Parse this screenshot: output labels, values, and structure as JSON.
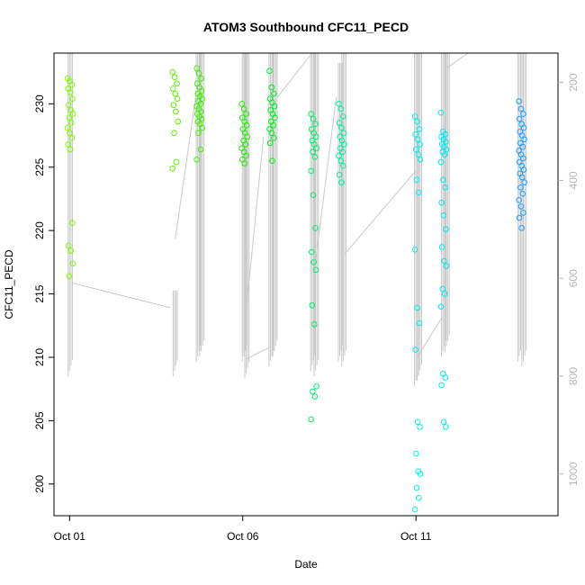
{
  "chart_data": {
    "type": "scatter",
    "title": "ATOM3 Southbound CFC11_PECD",
    "xlabel": "Date",
    "ylabel": "CFC11_PECD",
    "x_ticks": [
      "Oct 01",
      "Oct 06",
      "Oct 11"
    ],
    "x_tick_days": [
      1,
      6,
      11
    ],
    "xlim_days": [
      0.55,
      15.1
    ],
    "ylim": [
      197.5,
      234.0
    ],
    "y_ticks": [
      200,
      205,
      210,
      215,
      220,
      225,
      230
    ],
    "y2_ticks": [
      200,
      400,
      600,
      800,
      1000
    ],
    "y2lim": [
      1085,
      140
    ],
    "y2_color": "#b5b5b5",
    "trace_color": "#c8c8c8",
    "grid": false,
    "legend": "none",
    "clusters": [
      {
        "day": 1.02,
        "color": "#7cfc00",
        "values": [
          232.0,
          231.8,
          231.5,
          231.2,
          230.9,
          230.4,
          229.9,
          229.5,
          229.2,
          228.9,
          228.5,
          228.1,
          227.7,
          227.3,
          226.8,
          226.4,
          220.6,
          218.8,
          218.4,
          217.4,
          216.4
        ]
      },
      {
        "day": 4.05,
        "color": "#60f000",
        "values": [
          232.5,
          232.1,
          231.6,
          231.2,
          230.8,
          230.4,
          229.9,
          229.4,
          228.6,
          227.7,
          225.4,
          224.9
        ]
      },
      {
        "day": 4.75,
        "color": "#3ef000",
        "values": [
          232.8,
          232.4,
          232.0,
          231.6,
          231.3,
          231.0,
          230.8,
          230.6,
          230.4,
          230.2,
          230.0,
          229.8,
          229.6,
          229.4,
          229.2,
          229.0,
          228.8,
          228.6,
          228.4,
          228.1,
          227.7,
          226.4,
          225.6
        ]
      },
      {
        "day": 6.05,
        "color": "#1ef000",
        "values": [
          230.0,
          229.6,
          229.2,
          228.9,
          228.6,
          228.3,
          228.0,
          227.7,
          227.4,
          227.1,
          226.8,
          226.5,
          226.2,
          225.9,
          225.6,
          225.3
        ]
      },
      {
        "day": 6.85,
        "color": "#00f020",
        "values": [
          232.6,
          231.3,
          230.8,
          230.4,
          230.1,
          229.8,
          229.5,
          229.2,
          228.9,
          228.6,
          228.3,
          228.0,
          227.7,
          227.3,
          226.9,
          225.5
        ]
      },
      {
        "day": 8.05,
        "color": "#00f06a",
        "values": [
          229.2,
          228.8,
          228.4,
          228.0,
          227.7,
          227.4,
          227.1,
          226.8,
          226.5,
          226.2,
          225.8,
          224.7,
          222.8,
          220.2,
          218.3,
          217.5,
          216.9,
          214.1,
          212.6,
          207.7,
          207.3,
          206.9,
          205.1
        ]
      },
      {
        "day": 8.85,
        "color": "#00f0a0",
        "values": [
          230.0,
          229.6,
          229.0,
          228.5,
          228.1,
          227.7,
          227.4,
          227.1,
          226.8,
          226.5,
          226.2,
          225.9,
          225.5,
          225.1,
          224.4,
          223.8
        ]
      },
      {
        "day": 11.05,
        "color": "#00f0f0",
        "values": [
          229.0,
          228.6,
          228.0,
          227.6,
          227.2,
          226.8,
          226.4,
          226.0,
          225.6,
          224.0,
          223.0,
          218.5,
          213.9,
          212.7,
          210.6,
          204.9,
          204.5,
          202.4,
          201.0,
          200.8,
          199.7,
          198.9,
          198.0
        ]
      },
      {
        "day": 11.8,
        "color": "#00e8f0",
        "values": [
          229.3,
          227.8,
          227.6,
          227.4,
          227.2,
          227.0,
          226.8,
          226.6,
          226.4,
          226.2,
          226.0,
          225.4,
          224.0,
          223.4,
          222.2,
          221.2,
          220.1,
          218.7,
          217.6,
          217.2,
          215.4,
          215.0,
          214.0,
          208.7,
          208.4,
          207.8,
          204.9,
          204.5
        ]
      },
      {
        "day": 14.05,
        "color": "#1ea0ff",
        "values": [
          230.2,
          229.6,
          229.2,
          228.8,
          228.4,
          228.1,
          227.8,
          227.5,
          227.2,
          226.9,
          226.6,
          226.3,
          226.0,
          225.7,
          225.4,
          225.1,
          224.8,
          224.5,
          224.2,
          223.8,
          223.4,
          222.9,
          222.4,
          221.9,
          221.4,
          221.0,
          220.2
        ]
      }
    ],
    "pressure_profiles": [
      {
        "day": 1.02,
        "p_min": 140,
        "p_max": 800
      },
      {
        "day": 4.05,
        "p_min": 625,
        "p_max": 800
      },
      {
        "day": 4.72,
        "p_min": 140,
        "p_max": 770
      },
      {
        "day": 4.82,
        "p_min": 140,
        "p_max": 760
      },
      {
        "day": 6.05,
        "p_min": 140,
        "p_max": 770
      },
      {
        "day": 6.12,
        "p_min": 140,
        "p_max": 805
      },
      {
        "day": 6.82,
        "p_min": 140,
        "p_max": 780
      },
      {
        "day": 6.93,
        "p_min": 140,
        "p_max": 760
      },
      {
        "day": 8.02,
        "p_min": 140,
        "p_max": 790
      },
      {
        "day": 8.12,
        "p_min": 140,
        "p_max": 800
      },
      {
        "day": 8.82,
        "p_min": 160,
        "p_max": 770
      },
      {
        "day": 8.92,
        "p_min": 140,
        "p_max": 780
      },
      {
        "day": 11.02,
        "p_min": 140,
        "p_max": 820
      },
      {
        "day": 11.1,
        "p_min": 140,
        "p_max": 810
      },
      {
        "day": 11.8,
        "p_min": 140,
        "p_max": 760
      },
      {
        "day": 11.9,
        "p_min": 140,
        "p_max": 750
      },
      {
        "day": 14.0,
        "p_min": 140,
        "p_max": 770
      },
      {
        "day": 14.12,
        "p_min": 140,
        "p_max": 780
      }
    ],
    "pressure_transits": [
      [
        [
          1.1,
          610
        ],
        [
          3.9,
          660
        ]
      ],
      [
        [
          4.05,
          520
        ],
        [
          4.65,
          225
        ]
      ],
      [
        [
          6.05,
          700
        ],
        [
          6.6,
          310
        ]
      ],
      [
        [
          6.1,
          765
        ],
        [
          6.8,
          740
        ]
      ],
      [
        [
          7.0,
          230
        ],
        [
          8.0,
          140
        ]
      ],
      [
        [
          8.1,
          565
        ],
        [
          8.7,
          230
        ]
      ],
      [
        [
          8.95,
          550
        ],
        [
          11.0,
          380
        ]
      ],
      [
        [
          11.05,
          760
        ],
        [
          11.75,
          680
        ]
      ],
      [
        [
          11.9,
          170
        ],
        [
          12.5,
          140
        ]
      ]
    ]
  }
}
